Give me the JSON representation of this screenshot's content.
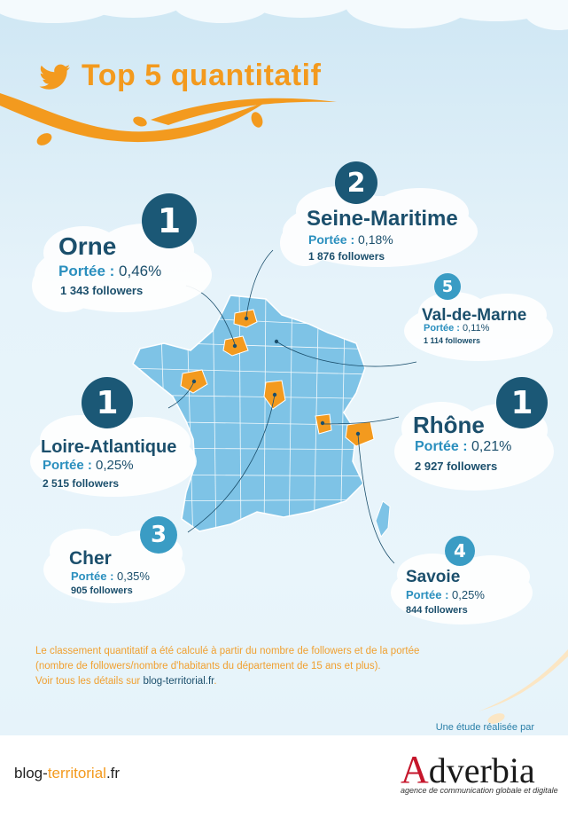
{
  "header": {
    "title": "Top 5 quantitatif",
    "icon": "twitter-bird-icon"
  },
  "reach_label": "Portée :",
  "entries": [
    {
      "rank": "1",
      "name": "Orne",
      "reach": "0,46%",
      "followers": "1 343 followers"
    },
    {
      "rank": "2",
      "name": "Seine-Maritime",
      "reach": "0,18%",
      "followers": "1 876 followers"
    },
    {
      "rank": "5",
      "name": "Val-de-Marne",
      "reach": "0,11%",
      "followers": "1 114 followers"
    },
    {
      "rank": "1",
      "name": "Loire-Atlantique",
      "reach": "0,25%",
      "followers": "2 515 followers"
    },
    {
      "rank": "1",
      "name": "Rhône",
      "reach": "0,21%",
      "followers": "2 927 followers"
    },
    {
      "rank": "3",
      "name": "Cher",
      "reach": "0,35%",
      "followers": "905 followers"
    },
    {
      "rank": "4",
      "name": "Savoie",
      "reach": "0,25%",
      "followers": "844 followers"
    }
  ],
  "note": {
    "line1": "Le classement quantitatif a été calculé à partir du nombre de followers et de la portée",
    "line2": "(nombre de followers/nombre d'habitants du département de 15 ans et plus).",
    "line3_prefix": "Voir tous les détails sur ",
    "line3_link": "blog-territorial.fr",
    "line3_suffix": "."
  },
  "credit": "Une étude réalisée par",
  "footer": {
    "blog_part1": "blog-",
    "blog_part2": "territorial",
    "blog_part3": ".fr",
    "brand_first": "A",
    "brand_rest": "dverbia",
    "tagline": "agence de communication globale et digitale"
  },
  "colors": {
    "orange": "#f39a1e",
    "dark_blue": "#1b5876",
    "light_blue": "#3a9cc4",
    "map": "#7ec3e6",
    "brand_red": "#c5162b"
  }
}
